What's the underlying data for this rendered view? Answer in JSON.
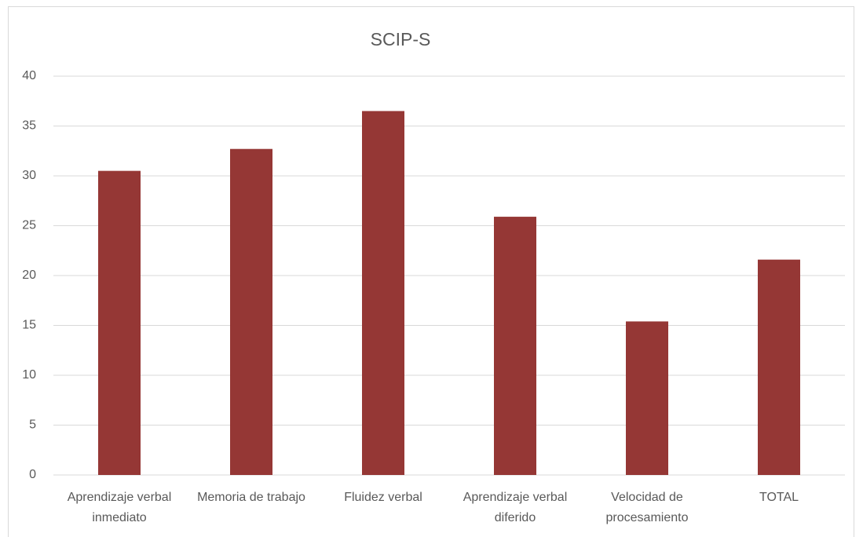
{
  "chart_data": {
    "type": "bar",
    "title": "SCIP-S",
    "categories": [
      "Aprendizaje verbal inmediato",
      "Memoria de trabajo",
      "Fluidez verbal",
      "Aprendizaje verbal diferido",
      "Velocidad de procesamiento",
      "TOTAL"
    ],
    "values": [
      30.5,
      32.7,
      36.5,
      25.9,
      15.4,
      21.6
    ],
    "color": "#953735",
    "ylim": [
      0,
      40
    ],
    "yticks": [
      0,
      5,
      10,
      15,
      20,
      25,
      30,
      35,
      40
    ],
    "grid": true
  }
}
